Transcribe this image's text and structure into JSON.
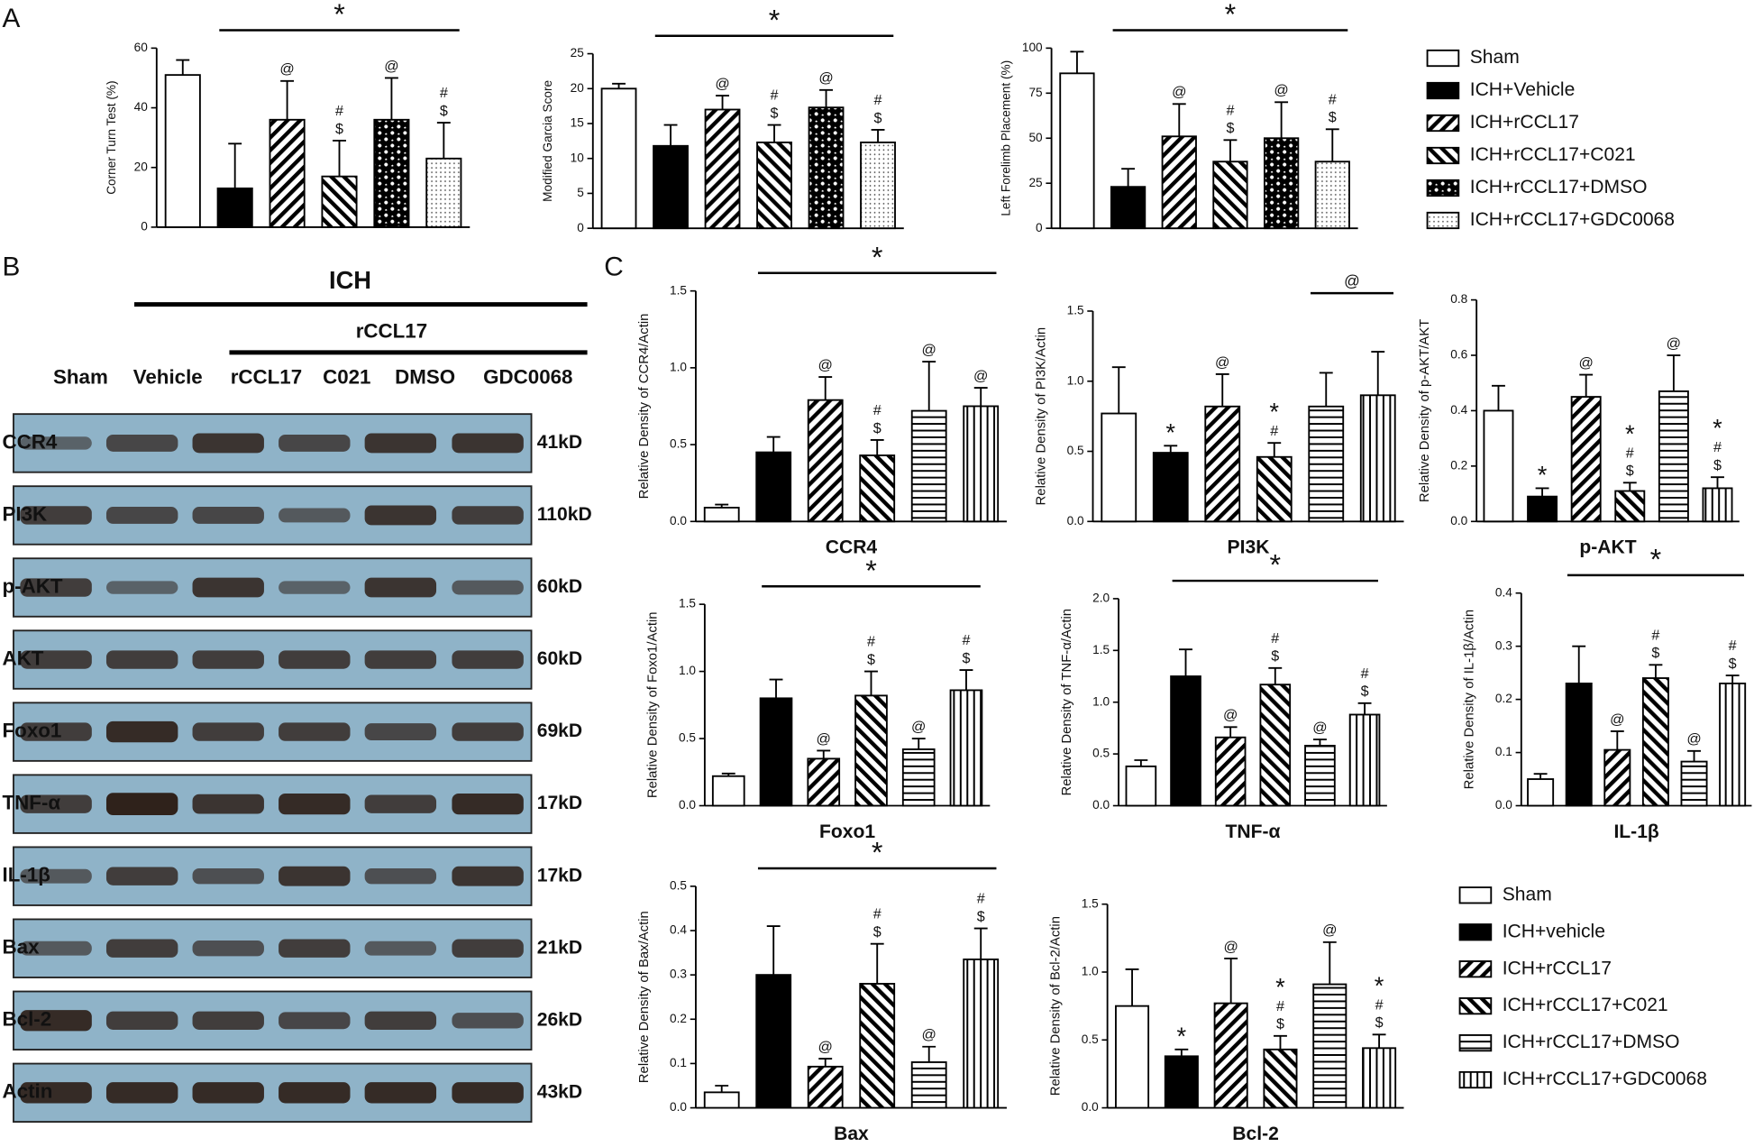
{
  "panels": {
    "a": "A",
    "b": "B",
    "c": "C"
  },
  "legend_a": [
    "Sham",
    "ICH+Vehicle",
    "ICH+rCCL17",
    "ICH+rCCL17+C021",
    "ICH+rCCL17+DMSO",
    "ICH+rCCL17+GDC0068"
  ],
  "legend_c": [
    "Sham",
    "ICH+vehicle",
    "ICH+rCCL17",
    "ICH+rCCL17+C021",
    "ICH+rCCL17+DMSO",
    "ICH+rCCL17+GDC0068"
  ],
  "blot": {
    "group": "ICH",
    "subgroup": "rCCL17",
    "lanes": [
      "Sham",
      "Vehicle",
      "rCCL17",
      "C021",
      "DMSO",
      "GDC0068"
    ],
    "rows": [
      {
        "protein": "CCR4",
        "size": "41kD"
      },
      {
        "protein": "PI3K",
        "size": "110kD"
      },
      {
        "protein": "p-AKT",
        "size": "60kD"
      },
      {
        "protein": "AKT",
        "size": "60kD"
      },
      {
        "protein": "Foxo1",
        "size": "69kD"
      },
      {
        "protein": "TNF-α",
        "size": "17kD"
      },
      {
        "protein": "IL-1β",
        "size": "17kD"
      },
      {
        "protein": "Bax",
        "size": "21kD"
      },
      {
        "protein": "Bcl-2",
        "size": "26kD"
      },
      {
        "protein": "Actin",
        "size": "43kD"
      }
    ]
  },
  "chart_data": [
    {
      "type": "bar",
      "ylabel": "Corner Turn Test (%)",
      "ylim": [
        0,
        60
      ],
      "yticks": [
        0,
        20,
        40,
        60
      ],
      "values": [
        51,
        13,
        36,
        17,
        36,
        23
      ],
      "errors": [
        5,
        15,
        13,
        12,
        14,
        12
      ],
      "marks": [
        [],
        [],
        [
          "@"
        ],
        [
          "#",
          "$"
        ],
        [
          "@"
        ],
        [
          "#",
          "$"
        ]
      ],
      "bracket": {
        "label": "*",
        "from": 1,
        "to": 5
      }
    },
    {
      "type": "bar",
      "ylabel": "Modified Garcia Score",
      "ylim": [
        0,
        25
      ],
      "yticks": [
        0,
        5,
        10,
        15,
        20,
        25
      ],
      "values": [
        20,
        11.8,
        17,
        12.3,
        17.3,
        12.3
      ],
      "errors": [
        0.7,
        3,
        2,
        2.5,
        2.5,
        1.8
      ],
      "marks": [
        [],
        [],
        [
          "@"
        ],
        [
          "#",
          "$"
        ],
        [
          "@"
        ],
        [
          "#",
          "$"
        ]
      ],
      "bracket": {
        "label": "*",
        "from": 1,
        "to": 5
      }
    },
    {
      "type": "bar",
      "ylabel": "Left Forelimb Placement (%)",
      "ylim": [
        0,
        100
      ],
      "yticks": [
        0,
        25,
        50,
        75,
        100
      ],
      "values": [
        86,
        23,
        51,
        37,
        50,
        37
      ],
      "errors": [
        12,
        10,
        18,
        12,
        20,
        18
      ],
      "marks": [
        [],
        [],
        [
          "@"
        ],
        [
          "#",
          "$"
        ],
        [
          "@"
        ],
        [
          "#",
          "$"
        ]
      ],
      "bracket": {
        "label": "*",
        "from": 1,
        "to": 5
      }
    },
    {
      "type": "bar",
      "ylabel": "Relative Density of CCR4/Actin",
      "xlabel": "CCR4",
      "ylim": [
        0,
        1.5
      ],
      "yticks": [
        {
          "value": 0,
          "label": "0.0"
        },
        0.5,
        {
          "value": 1,
          "label": "1.0"
        },
        1.5
      ],
      "values": [
        0.09,
        0.45,
        0.79,
        0.43,
        0.72,
        0.75
      ],
      "errors": [
        0.02,
        0.1,
        0.15,
        0.1,
        0.32,
        0.12
      ],
      "marks": [
        [],
        [],
        [
          "@"
        ],
        [
          "#",
          "$"
        ],
        [
          "@"
        ],
        [
          "@"
        ]
      ],
      "bracket": {
        "label": "*",
        "from": 1,
        "to": 5
      }
    },
    {
      "type": "bar",
      "ylabel": "Relative Density of PI3K/Actin",
      "xlabel": "PI3K",
      "ylim": [
        0,
        1.5
      ],
      "yticks": [
        {
          "value": 0,
          "label": "0.0"
        },
        0.5,
        {
          "value": 1,
          "label": "1.0"
        },
        1.5
      ],
      "values": [
        0.77,
        0.49,
        0.82,
        0.46,
        0.82,
        0.9
      ],
      "errors": [
        0.33,
        0.05,
        0.23,
        0.1,
        0.24,
        0.31
      ],
      "marks": [
        [],
        [
          "*"
        ],
        [
          "@"
        ],
        [
          "*",
          "#"
        ],
        [],
        []
      ],
      "bracket": {
        "label": "@",
        "from": 4,
        "to": 5
      }
    },
    {
      "type": "bar",
      "ylabel": "Relative Density of p-AKT/AKT",
      "xlabel": "p-AKT",
      "ylim": [
        0,
        0.8
      ],
      "yticks": [
        {
          "value": 0,
          "label": "0.0"
        },
        0.2,
        0.4,
        0.6,
        0.8
      ],
      "values": [
        0.4,
        0.09,
        0.45,
        0.11,
        0.47,
        0.12
      ],
      "errors": [
        0.09,
        0.03,
        0.08,
        0.03,
        0.13,
        0.04
      ],
      "marks": [
        [],
        [
          "*"
        ],
        [
          "@"
        ],
        [
          "*",
          "#",
          "$"
        ],
        [
          "@"
        ],
        [
          "*",
          "#",
          "$"
        ]
      ]
    },
    {
      "type": "bar",
      "ylabel": "Relative Density of Foxo1/Actin",
      "xlabel": "Foxo1",
      "ylim": [
        0,
        1.5
      ],
      "yticks": [
        {
          "value": 0,
          "label": "0.0"
        },
        0.5,
        {
          "value": 1,
          "label": "1.0"
        },
        1.5
      ],
      "values": [
        0.22,
        0.8,
        0.35,
        0.82,
        0.42,
        0.86
      ],
      "errors": [
        0.02,
        0.14,
        0.06,
        0.18,
        0.08,
        0.15
      ],
      "marks": [
        [],
        [],
        [
          "@"
        ],
        [
          "#",
          "$"
        ],
        [
          "@"
        ],
        [
          "#",
          "$"
        ]
      ],
      "bracket": {
        "label": "*",
        "from": 1,
        "to": 5
      }
    },
    {
      "type": "bar",
      "ylabel": "Relative Density of TNF-α/Actin",
      "xlabel": "TNF-α",
      "ylim": [
        0,
        2
      ],
      "yticks": [
        {
          "value": 0,
          "label": "0.0"
        },
        0.5,
        {
          "value": 1,
          "label": "1.0"
        },
        1.5,
        {
          "value": 2,
          "label": "2.0"
        }
      ],
      "values": [
        0.38,
        1.25,
        0.66,
        1.17,
        0.58,
        0.88
      ],
      "errors": [
        0.06,
        0.26,
        0.1,
        0.16,
        0.06,
        0.11
      ],
      "marks": [
        [],
        [],
        [
          "@"
        ],
        [
          "#",
          "$"
        ],
        [
          "@"
        ],
        [
          "#",
          "$"
        ]
      ],
      "bracket": {
        "label": "*",
        "from": 1,
        "to": 5
      }
    },
    {
      "type": "bar",
      "ylabel": "Relative Density of IL-1β/Actin",
      "xlabel": "IL-1β",
      "ylim": [
        0,
        0.4
      ],
      "yticks": [
        {
          "value": 0,
          "label": "0.0"
        },
        0.1,
        0.2,
        0.3,
        0.4
      ],
      "values": [
        0.05,
        0.23,
        0.105,
        0.24,
        0.083,
        0.23
      ],
      "errors": [
        0.01,
        0.07,
        0.035,
        0.025,
        0.02,
        0.015
      ],
      "marks": [
        [],
        [],
        [
          "@"
        ],
        [
          "#",
          "$"
        ],
        [
          "@"
        ],
        [
          "#",
          "$"
        ]
      ],
      "bracket": {
        "label": "*",
        "from": 1,
        "to": 5
      }
    },
    {
      "type": "bar",
      "ylabel": "Relative Density of Bax/Actin",
      "xlabel": "Bax",
      "ylim": [
        0,
        0.5
      ],
      "yticks": [
        {
          "value": 0,
          "label": "0.0"
        },
        0.1,
        0.2,
        0.3,
        0.4,
        0.5
      ],
      "values": [
        0.035,
        0.3,
        0.093,
        0.28,
        0.103,
        0.335
      ],
      "errors": [
        0.015,
        0.11,
        0.018,
        0.09,
        0.035,
        0.07
      ],
      "marks": [
        [],
        [],
        [
          "@"
        ],
        [
          "#",
          "$"
        ],
        [
          "@"
        ],
        [
          "#",
          "$"
        ]
      ],
      "bracket": {
        "label": "*",
        "from": 1,
        "to": 5
      }
    },
    {
      "type": "bar",
      "ylabel": "Relative Density of Bcl-2/Actin",
      "xlabel": "Bcl-2",
      "ylim": [
        0,
        1.5
      ],
      "yticks": [
        {
          "value": 0,
          "label": "0.0"
        },
        0.5,
        {
          "value": 1,
          "label": "1.0"
        },
        1.5
      ],
      "values": [
        0.75,
        0.38,
        0.77,
        0.43,
        0.91,
        0.44
      ],
      "errors": [
        0.27,
        0.05,
        0.33,
        0.1,
        0.31,
        0.1
      ],
      "marks": [
        [],
        [
          "*"
        ],
        [
          "@"
        ],
        [
          "*",
          "#",
          "$"
        ],
        [
          "@"
        ],
        [
          "*",
          "#",
          "$"
        ]
      ]
    }
  ]
}
